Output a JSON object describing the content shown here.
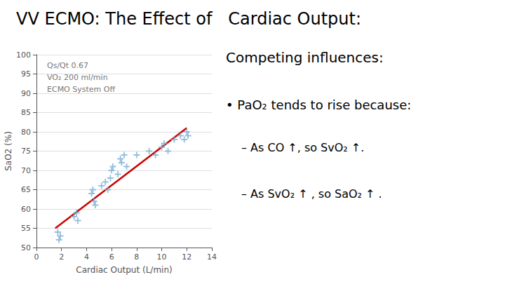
{
  "chart_data": {
    "type": "scatter",
    "title": "VV ECMO: The Effect of   Cardiac Output:",
    "x_label": "Cardiac Output (L/min)",
    "y_label": "SaO2 (%)",
    "xlim": [
      0,
      14
    ],
    "xticks": [
      0,
      2,
      4,
      6,
      8,
      10,
      12,
      14
    ],
    "ylim": [
      50,
      100
    ],
    "yticks": [
      50,
      55,
      60,
      65,
      70,
      75,
      80,
      85,
      90,
      95,
      100
    ],
    "grid": true,
    "annotations": [
      "Qs/Qt 0.67",
      "VO₂ 200 ml/min",
      "ECMO System Off"
    ],
    "text_panel": [
      "Competing influences:",
      "• PaO₂ tends to rise because:",
      "– As CO ↑, so SvO₂ ↑.",
      "– As SvO₂ ↑ , so SaO₂ ↑ ."
    ],
    "series": [
      {
        "type": "scatter",
        "color": "#7bafd4",
        "marker": "plus",
        "x": [
          1.7,
          1.8,
          1.9,
          3.0,
          3.2,
          3.3,
          4.4,
          4.5,
          4.6,
          4.7,
          5.2,
          5.5,
          5.7,
          5.9,
          6.0,
          6.1,
          6.5,
          6.7,
          6.8,
          7.0,
          7.2,
          8.0,
          9.0,
          9.5,
          10.0,
          10.2,
          10.5,
          11.0,
          11.5,
          11.8,
          12.0,
          12.1
        ],
        "values": [
          54,
          52,
          53,
          58,
          59,
          57,
          64,
          65,
          62,
          61,
          66,
          67,
          65,
          68,
          70,
          71,
          69,
          73,
          72,
          74,
          71,
          74,
          75,
          74,
          76,
          77,
          75,
          78,
          79,
          78,
          80,
          79
        ]
      },
      {
        "type": "line",
        "color": "#cc0000",
        "x": [
          1.5,
          12.0
        ],
        "values": [
          55.0,
          81.0
        ]
      }
    ]
  }
}
